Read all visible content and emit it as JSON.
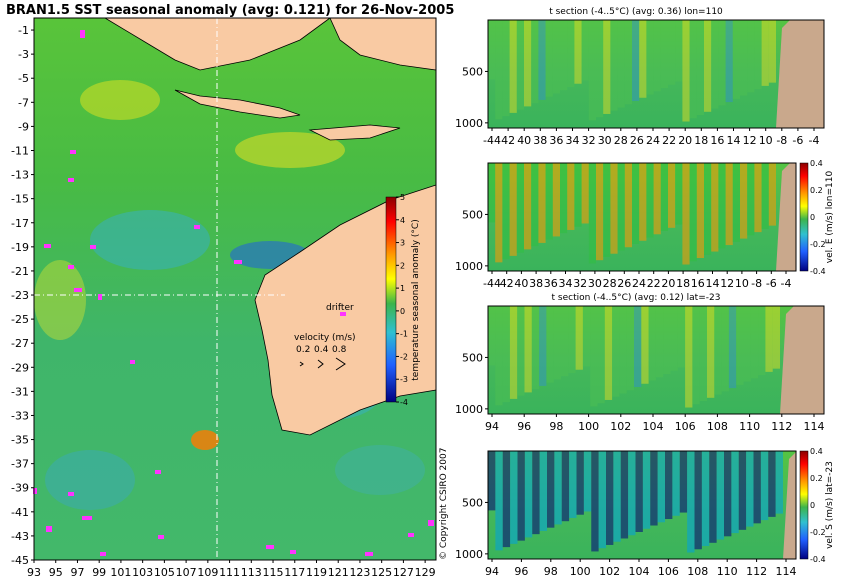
{
  "main_map": {
    "title": "BRAN1.5 SST seasonal anomaly (avg: 0.121) for 26-Nov-2005",
    "lat_ticks": [
      -1,
      -3,
      -5,
      -7,
      -9,
      -11,
      -13,
      -15,
      -17,
      -19,
      -21,
      -23,
      -25,
      -27,
      -29,
      -31,
      -33,
      -35,
      -37,
      -39,
      -41,
      -43,
      -45
    ],
    "lon_ticks": [
      93,
      95,
      97,
      99,
      101,
      103,
      105,
      107,
      109,
      111,
      113,
      115,
      117,
      119,
      121,
      123,
      125,
      127,
      129
    ],
    "lat_range": [
      -45,
      0
    ],
    "lon_range": [
      93,
      130
    ],
    "section_lines": {
      "lon": 110,
      "lat": -23
    },
    "colorbar": {
      "label": "temperature seasonal anomaly (°C)",
      "ticks": [
        5,
        4,
        3,
        2,
        1,
        0,
        -1,
        -2,
        -3,
        -4
      ],
      "range": [
        -4,
        5
      ]
    },
    "drifter_label": "drifter",
    "velocity_legend": {
      "title": "velocity (m/s)",
      "values": [
        "0.2",
        "0.4",
        "0.8"
      ]
    },
    "copyright": "© Copyright CSIRO 2007",
    "colors": {
      "land": "#f9caa3",
      "anomaly_mid": "#3cb44b",
      "drifter": "#ff33ff"
    }
  },
  "panels": [
    {
      "title": "t section (-4..5°C) (avg: 0.36) lon=110",
      "x_ticks": [
        "-44",
        "42",
        "40",
        "38",
        "36",
        "34",
        "32",
        "30",
        "28",
        "26",
        "24",
        "22",
        "20",
        "18",
        "16",
        "14",
        "12",
        "10",
        "-8",
        "-6",
        "-4"
      ],
      "y_ticks": [
        "500",
        "1000"
      ],
      "y_range": [
        0,
        1050
      ],
      "x_range": [
        -45,
        -1
      ],
      "colorbar": null,
      "side_label": ""
    },
    {
      "title": "",
      "x_ticks": [
        "-44",
        "42",
        "40",
        "38",
        "36",
        "34",
        "32",
        "30",
        "28",
        "26",
        "24",
        "22",
        "20",
        "18",
        "16",
        "14",
        "12",
        "10",
        "-8",
        "-6",
        "-4"
      ],
      "y_ticks": [
        "500",
        "1000"
      ],
      "y_range": [
        0,
        1050
      ],
      "x_range": [
        -45,
        -1
      ],
      "colorbar": {
        "ticks": [
          "0.4",
          "0.2",
          "0",
          "-0.2",
          "-0.4"
        ],
        "range": [
          -0.4,
          0.4
        ]
      },
      "side_label": "vel. E (m/s) lon=110"
    },
    {
      "title": "t section (-4..5°C) (avg: 0.12) lat=-23",
      "x_ticks": [
        "94",
        "96",
        "98",
        "100",
        "102",
        "104",
        "106",
        "108",
        "110",
        "112",
        "114"
      ],
      "y_ticks": [
        "500",
        "1000"
      ],
      "y_range": [
        0,
        1050
      ],
      "x_range": [
        93,
        116
      ],
      "colorbar": null,
      "side_label": ""
    },
    {
      "title": "",
      "x_ticks": [
        "94",
        "96",
        "98",
        "100",
        "102",
        "104",
        "106",
        "108",
        "110",
        "112",
        "114"
      ],
      "y_ticks": [
        "500",
        "1000"
      ],
      "y_range": [
        0,
        1050
      ],
      "x_range": [
        93,
        116
      ],
      "colorbar": {
        "ticks": [
          "0.4",
          "0.2",
          "0",
          "-0.2",
          "-0.4"
        ],
        "range": [
          -0.4,
          0.4
        ]
      },
      "side_label": "vel. S (m/s) lat=-23"
    }
  ]
}
